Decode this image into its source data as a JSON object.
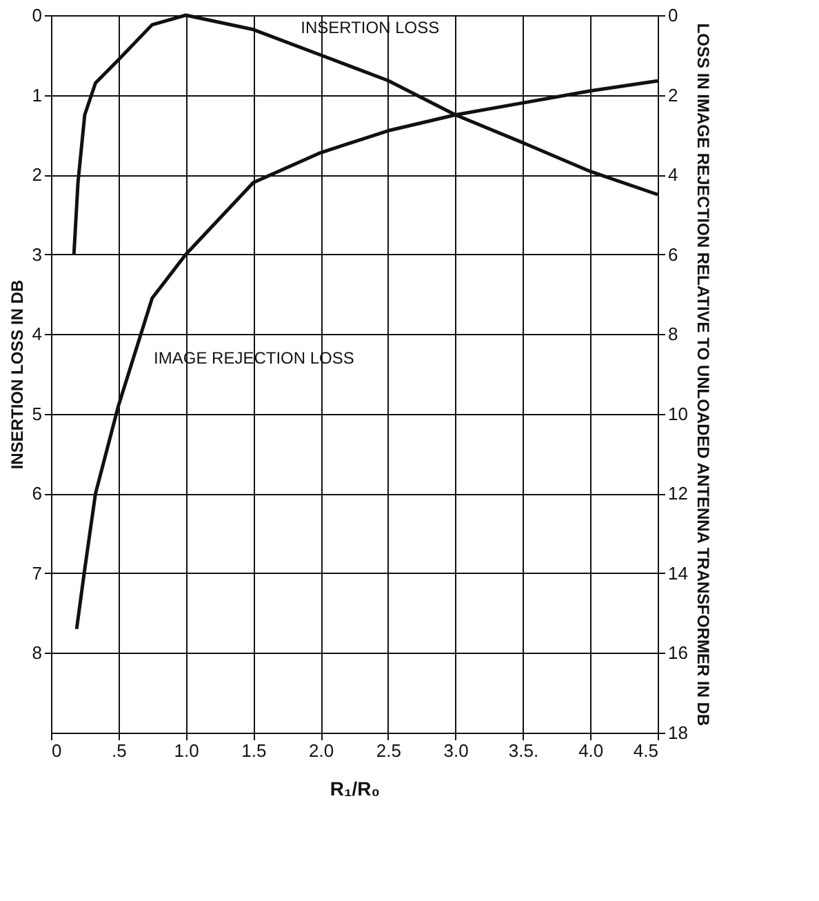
{
  "chart_data": {
    "type": "line",
    "xlabel": "R₁/R₀",
    "ylabel": "INSERTION LOSS IN DB",
    "y2label": "LOSS IN IMAGE REJECTION RELATIVE TO UNLOADED ANTENNA TRANSFORMER IN DB",
    "xlim": [
      0,
      4.5
    ],
    "xticks": [
      {
        "value": 0,
        "label": "0"
      },
      {
        "value": 0.5,
        "label": ".5"
      },
      {
        "value": 1,
        "label": "1.0"
      },
      1.5,
      {
        "value": 2,
        "label": "2.0"
      },
      2.5,
      {
        "value": 3,
        "label": "3.0"
      },
      {
        "value": 3.5,
        "label": "3.5."
      },
      {
        "value": 4,
        "label": "4.0"
      },
      4.5
    ],
    "ylim": [
      9,
      0
    ],
    "yticks": [
      0,
      1,
      2,
      3,
      4,
      5,
      6,
      7,
      8
    ],
    "y2lim": [
      18,
      0
    ],
    "y2ticks": [
      0,
      2,
      4,
      6,
      8,
      10,
      12,
      14,
      16,
      18
    ],
    "grid": true,
    "marker": "none",
    "line_style": "solid",
    "series": [
      {
        "color": "#111111",
        "x": [
          0.17,
          0.2,
          0.25,
          0.33,
          0.5,
          0.75,
          1.0,
          1.5,
          2.0,
          2.5,
          3.0,
          3.5,
          4.0,
          4.5
        ],
        "values": [
          3.0,
          2.1,
          1.25,
          0.85,
          0.56,
          0.12,
          0.0,
          0.18,
          0.5,
          0.82,
          1.25,
          1.6,
          1.96,
          2.25
        ]
      },
      {
        "color": "#111111",
        "axis": "y2",
        "x": [
          0.19,
          0.25,
          0.33,
          0.5,
          0.75,
          1.0,
          1.5,
          2.0,
          2.5,
          3.0,
          3.5,
          4.0,
          4.5
        ],
        "values": [
          15.4,
          13.9,
          12.0,
          9.8,
          7.1,
          6.0,
          4.2,
          3.45,
          2.9,
          2.5,
          2.2,
          1.9,
          1.65
        ]
      }
    ],
    "annotations": [
      {
        "text": "INSERTION LOSS",
        "x": 1.75,
        "y": 0.33
      },
      {
        "text": "IMAGE REJECTION LOSS",
        "x": 0.66,
        "y": 4.2
      }
    ]
  }
}
